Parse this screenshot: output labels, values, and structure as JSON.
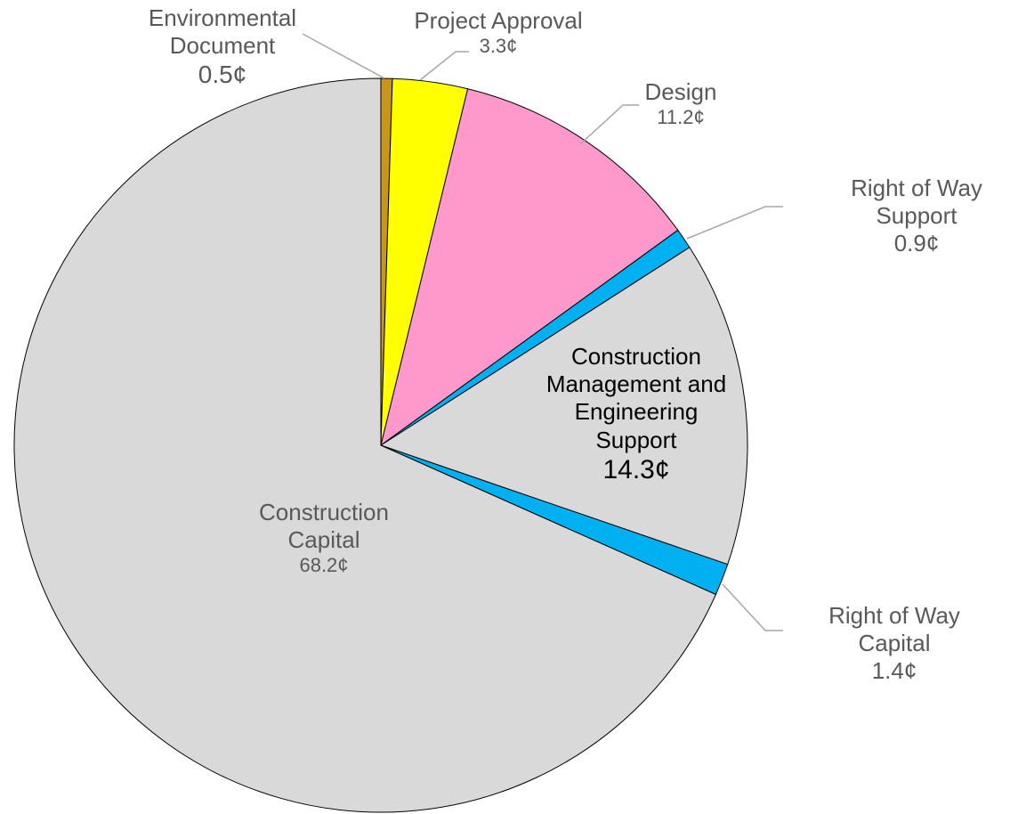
{
  "chart_data": {
    "type": "pie",
    "categories": [
      "Environmental Document",
      "Project Approval",
      "Design",
      "Right of Way Support",
      "Construction Management and Engineering Support",
      "Right of Way Capital",
      "Construction Capital"
    ],
    "values": [
      0.5,
      3.3,
      11.2,
      0.9,
      14.3,
      1.4,
      68.2
    ],
    "value_labels": [
      "0.5¢",
      "3.3¢",
      "11.2¢",
      "0.9¢",
      "14.3¢",
      "1.4¢",
      "68.2¢"
    ],
    "colors": [
      "#c9961c",
      "#ffff00",
      "#ff99cc",
      "#00b0f0",
      "#d9d9d9",
      "#00b0f0",
      "#d9d9d9"
    ]
  }
}
